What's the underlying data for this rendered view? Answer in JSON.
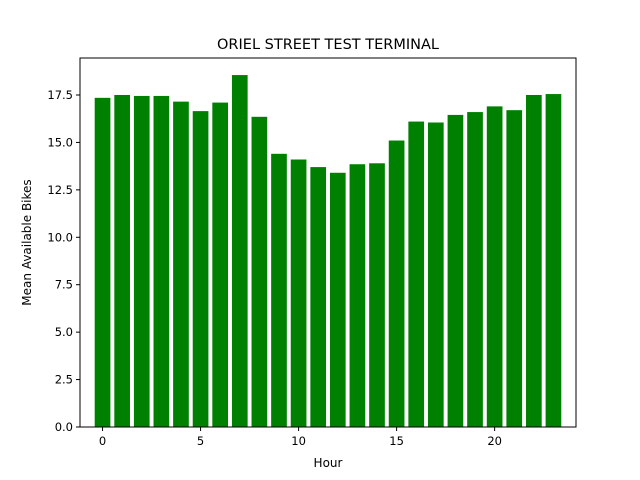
{
  "chart_data": {
    "type": "bar",
    "title": "ORIEL STREET TEST TERMINAL",
    "xlabel": "Hour",
    "ylabel": "Mean Available Bikes",
    "color": "#008000",
    "x": [
      0,
      1,
      2,
      3,
      4,
      5,
      6,
      7,
      8,
      9,
      10,
      11,
      12,
      13,
      14,
      15,
      16,
      17,
      18,
      19,
      20,
      21,
      22,
      23
    ],
    "values": [
      17.35,
      17.5,
      17.45,
      17.45,
      17.15,
      16.65,
      17.1,
      18.55,
      16.35,
      14.4,
      14.1,
      13.7,
      13.4,
      13.85,
      13.9,
      15.1,
      16.1,
      16.05,
      16.45,
      16.6,
      16.9,
      16.7,
      17.5,
      17.55
    ],
    "xlim": [
      -1.15,
      24.15
    ],
    "ylim": [
      0,
      19.45
    ],
    "xticks": [
      0,
      5,
      10,
      15,
      20
    ],
    "yticks": [
      0.0,
      2.5,
      5.0,
      7.5,
      10.0,
      12.5,
      15.0,
      17.5
    ],
    "ytick_labels": [
      "0.0",
      "2.5",
      "5.0",
      "7.5",
      "10.0",
      "12.5",
      "15.0",
      "17.5"
    ],
    "grid": false,
    "legend": "none"
  }
}
